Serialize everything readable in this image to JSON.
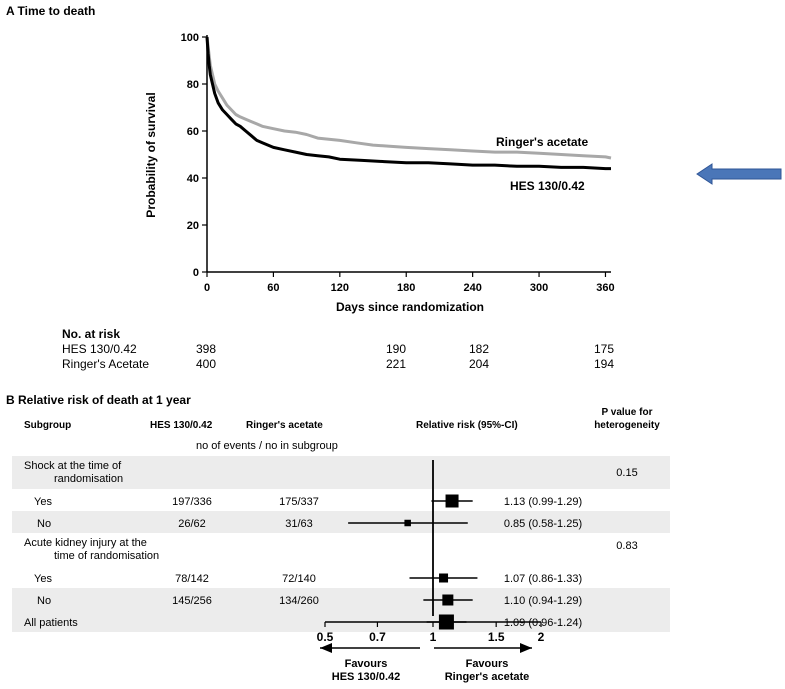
{
  "panelA": {
    "title": "A Time to death",
    "chart_data": {
      "type": "line",
      "title": "A Time to death",
      "xlabel": "Days since randomization",
      "ylabel": "Probability of survival",
      "xlim": [
        0,
        365
      ],
      "ylim": [
        0,
        100
      ],
      "xticks": [
        0,
        60,
        120,
        180,
        240,
        300,
        360
      ],
      "yticks": [
        0,
        20,
        40,
        60,
        80,
        100
      ],
      "grid": false,
      "series": [
        {
          "name": "Ringer's acetate",
          "color": "#a8a8a8",
          "x": [
            0,
            1,
            2,
            3,
            5,
            7,
            10,
            14,
            18,
            22,
            26,
            30,
            35,
            40,
            45,
            50,
            60,
            70,
            80,
            90,
            100,
            110,
            120,
            135,
            150,
            165,
            180,
            200,
            220,
            240,
            260,
            280,
            300,
            320,
            340,
            360,
            365
          ],
          "y": [
            100,
            96,
            92,
            88,
            84,
            80,
            77,
            74,
            71,
            69,
            67,
            66,
            65,
            64,
            63,
            62,
            61,
            60,
            59.5,
            58.5,
            57,
            56.5,
            56,
            55,
            54,
            53.5,
            53,
            52.5,
            52,
            51.5,
            51,
            51,
            50.5,
            50,
            49.5,
            49,
            48.5
          ]
        },
        {
          "name": "HES 130/0.42",
          "color": "#000000",
          "x": [
            0,
            1,
            2,
            3,
            5,
            7,
            10,
            14,
            18,
            22,
            26,
            30,
            35,
            40,
            45,
            50,
            60,
            70,
            80,
            90,
            100,
            110,
            120,
            140,
            160,
            180,
            200,
            220,
            240,
            260,
            280,
            300,
            320,
            340,
            360,
            365
          ],
          "y": [
            100,
            93,
            88,
            84,
            80,
            76,
            72,
            69,
            67,
            65,
            63,
            62,
            60,
            58,
            56,
            55,
            53,
            52,
            51,
            50,
            49.5,
            49,
            48,
            47.5,
            47,
            46.5,
            46.5,
            46,
            45.5,
            45.5,
            45,
            45,
            44.5,
            44.5,
            44,
            44
          ]
        }
      ]
    },
    "risk_table": {
      "header": "No. at risk",
      "rows": [
        {
          "label": "HES 130/0.42",
          "values": [
            "398",
            "190",
            "182",
            "175"
          ]
        },
        {
          "label": "Ringer's Acetate",
          "values": [
            "400",
            "221",
            "204",
            "194"
          ]
        }
      ]
    },
    "arrow_color": "#4a76b8"
  },
  "panelB": {
    "title": "B Relative risk of death at 1 year",
    "headers": {
      "subgroup": "Subgroup",
      "hes": "HES 130/0.42",
      "ringer": "Ringer's acetate",
      "rr": "Relative risk (95%-CI)",
      "p_line1": "P value for",
      "p_line2": "heterogeneity",
      "subheader": "no of events / no in subgroup"
    },
    "chart_data": {
      "type": "forest",
      "xlim": [
        0.5,
        2
      ],
      "scale": "log",
      "reference": 1,
      "xticks": [
        "0.5",
        "0.7",
        "1",
        "1.5",
        "2"
      ],
      "xtick_values": [
        0.5,
        0.7,
        1,
        1.5,
        2
      ],
      "rows": [
        {
          "label": "Shock at the time of",
          "label2": "randomisation",
          "kind": "group",
          "p": "0.15"
        },
        {
          "label": "Yes",
          "kind": "item",
          "hes": "197/336",
          "ringer": "175/337",
          "rr": 1.13,
          "lo": 0.99,
          "hi": 1.29,
          "ci_text": "1.13 (0.99-1.29)",
          "weight": 1.0
        },
        {
          "label": "No",
          "kind": "item",
          "hes": "26/62",
          "ringer": "31/63",
          "rr": 0.85,
          "lo": 0.58,
          "hi": 1.25,
          "ci_text": "0.85 (0.58-1.25)",
          "weight": 0.35
        },
        {
          "label": "Acute kidney injury at the",
          "label2": "time of  randomisation",
          "kind": "group",
          "p": "0.83"
        },
        {
          "label": "Yes",
          "kind": "item",
          "hes": "78/142",
          "ringer": "72/140",
          "rr": 1.07,
          "lo": 0.86,
          "hi": 1.33,
          "ci_text": "1.07 (0.86-1.33)",
          "weight": 0.6
        },
        {
          "label": "No",
          "kind": "item",
          "hes": "145/256",
          "ringer": "134/260",
          "rr": 1.1,
          "lo": 0.94,
          "hi": 1.29,
          "ci_text": "1.10 (0.94-1.29)",
          "weight": 0.8
        },
        {
          "label": "All patients",
          "kind": "item",
          "hes": "",
          "ringer": "",
          "rr": 1.09,
          "lo": 0.96,
          "hi": 1.24,
          "ci_text": "1.09 (0.96-1.24)",
          "weight": 1.2
        }
      ],
      "favours_left": [
        "Favours",
        "HES 130/0.42"
      ],
      "favours_right": [
        "Favours",
        "Ringer's acetate"
      ]
    }
  }
}
